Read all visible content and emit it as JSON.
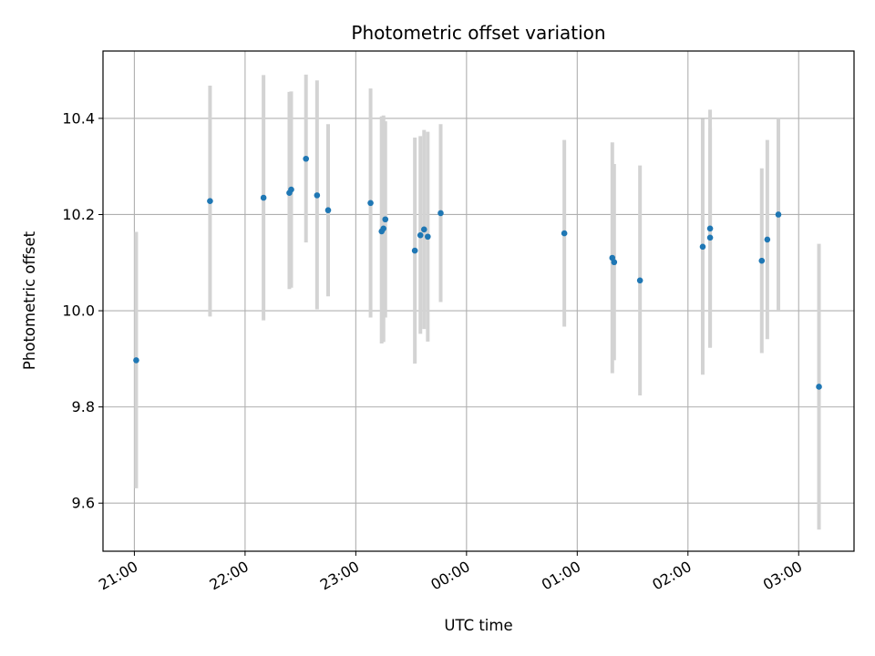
{
  "chart_data": {
    "type": "scatter",
    "title": "Photometric offset variation",
    "xlabel": "UTC time",
    "ylabel": "Photometric offset",
    "x_ticks": [
      "21:00",
      "22:00",
      "23:00",
      "00:00",
      "01:00",
      "02:00",
      "03:00"
    ],
    "y_ticks": [
      "9.6",
      "9.8",
      "10.0",
      "10.2",
      "10.4"
    ],
    "y_tick_values": [
      9.6,
      9.8,
      10.0,
      10.2,
      10.4
    ],
    "xlim": [
      "20:43",
      "03:30"
    ],
    "ylim": [
      9.5,
      10.54
    ],
    "grid": true,
    "marker_color": "#1f77b4",
    "errorbar_color": "#d3d3d3",
    "points": [
      {
        "time": "21:01",
        "y": 9.897,
        "low": 9.631,
        "high": 10.164
      },
      {
        "time": "21:41",
        "y": 10.228,
        "low": 9.988,
        "high": 10.468
      },
      {
        "time": "22:10",
        "y": 10.235,
        "low": 9.98,
        "high": 10.49
      },
      {
        "time": "22:24",
        "y": 10.245,
        "low": 10.045,
        "high": 10.455
      },
      {
        "time": "22:25",
        "y": 10.252,
        "low": 10.048,
        "high": 10.456
      },
      {
        "time": "22:33",
        "y": 10.316,
        "low": 10.142,
        "high": 10.491
      },
      {
        "time": "22:39",
        "y": 10.24,
        "low": 10.003,
        "high": 10.479
      },
      {
        "time": "22:45",
        "y": 10.209,
        "low": 10.03,
        "high": 10.388
      },
      {
        "time": "23:08",
        "y": 10.224,
        "low": 9.986,
        "high": 10.462
      },
      {
        "time": "23:14",
        "y": 10.165,
        "low": 9.932,
        "high": 10.404
      },
      {
        "time": "23:15",
        "y": 10.171,
        "low": 9.935,
        "high": 10.406
      },
      {
        "time": "23:16",
        "y": 10.19,
        "low": 9.986,
        "high": 10.394
      },
      {
        "time": "23:32",
        "y": 10.125,
        "low": 9.89,
        "high": 10.36
      },
      {
        "time": "23:35",
        "y": 10.157,
        "low": 9.952,
        "high": 10.363
      },
      {
        "time": "23:37",
        "y": 10.169,
        "low": 9.962,
        "high": 10.376
      },
      {
        "time": "23:39",
        "y": 10.154,
        "low": 9.936,
        "high": 10.372
      },
      {
        "time": "23:46",
        "y": 10.203,
        "low": 10.018,
        "high": 10.388
      },
      {
        "time": "00:53",
        "y": 10.161,
        "low": 9.967,
        "high": 10.355
      },
      {
        "time": "01:19",
        "y": 10.11,
        "low": 9.87,
        "high": 10.35
      },
      {
        "time": "01:20",
        "y": 10.101,
        "low": 9.897,
        "high": 10.305
      },
      {
        "time": "01:34",
        "y": 10.063,
        "low": 9.824,
        "high": 10.302
      },
      {
        "time": "02:08",
        "y": 10.133,
        "low": 9.867,
        "high": 10.399
      },
      {
        "time": "02:12",
        "y": 10.152,
        "low": 9.923,
        "high": 10.38
      },
      {
        "time": "02:12",
        "y": 10.171,
        "low": 9.924,
        "high": 10.418
      },
      {
        "time": "02:40",
        "y": 10.104,
        "low": 9.912,
        "high": 10.296
      },
      {
        "time": "02:43",
        "y": 10.148,
        "low": 9.941,
        "high": 10.355
      },
      {
        "time": "02:49",
        "y": 10.2,
        "low": 10.0,
        "high": 10.4
      },
      {
        "time": "03:11",
        "y": 9.842,
        "low": 9.545,
        "high": 10.139
      }
    ]
  }
}
